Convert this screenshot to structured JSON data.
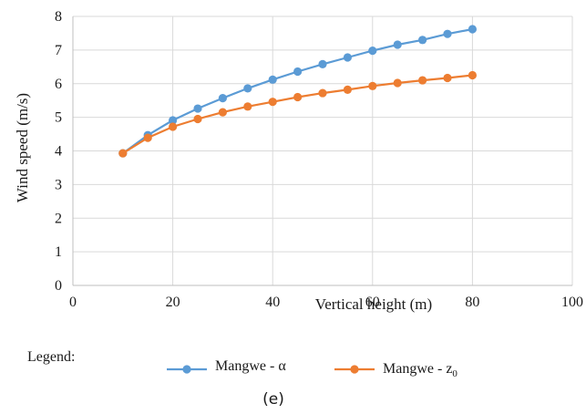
{
  "chart_data": {
    "type": "line",
    "xlabel": "Vertical height (m)",
    "ylabel": "Wind speed (m/s)",
    "xlim": [
      0,
      100
    ],
    "ylim": [
      0,
      8
    ],
    "x_ticks": [
      "0",
      "20",
      "40",
      "60",
      "80",
      "100"
    ],
    "y_ticks": [
      "0",
      "1",
      "2",
      "3",
      "4",
      "5",
      "6",
      "7",
      "8"
    ],
    "grid": "both",
    "legend_label": "Legend:",
    "legend_placement": "bottom",
    "caption": "(e)",
    "series": [
      {
        "name": "Mangwe - α",
        "name_base": "Mangwe - α",
        "color": "#5b9bd5",
        "marker": "circle",
        "x": [
          10,
          15,
          20,
          25,
          30,
          35,
          40,
          45,
          50,
          55,
          60,
          65,
          70,
          75,
          80
        ],
        "values": [
          3.93,
          4.47,
          4.91,
          5.26,
          5.57,
          5.86,
          6.12,
          6.36,
          6.58,
          6.78,
          6.98,
          7.16,
          7.3,
          7.48,
          7.62
        ]
      },
      {
        "name": "Mangwe - z0",
        "name_base": "Mangwe - z",
        "name_sub": "0",
        "color": "#ed7d31",
        "marker": "circle",
        "x": [
          10,
          15,
          20,
          25,
          30,
          35,
          40,
          45,
          50,
          55,
          60,
          65,
          70,
          75,
          80
        ],
        "values": [
          3.93,
          4.39,
          4.72,
          4.95,
          5.15,
          5.32,
          5.46,
          5.6,
          5.72,
          5.82,
          5.93,
          6.02,
          6.1,
          6.17,
          6.25
        ]
      }
    ]
  }
}
